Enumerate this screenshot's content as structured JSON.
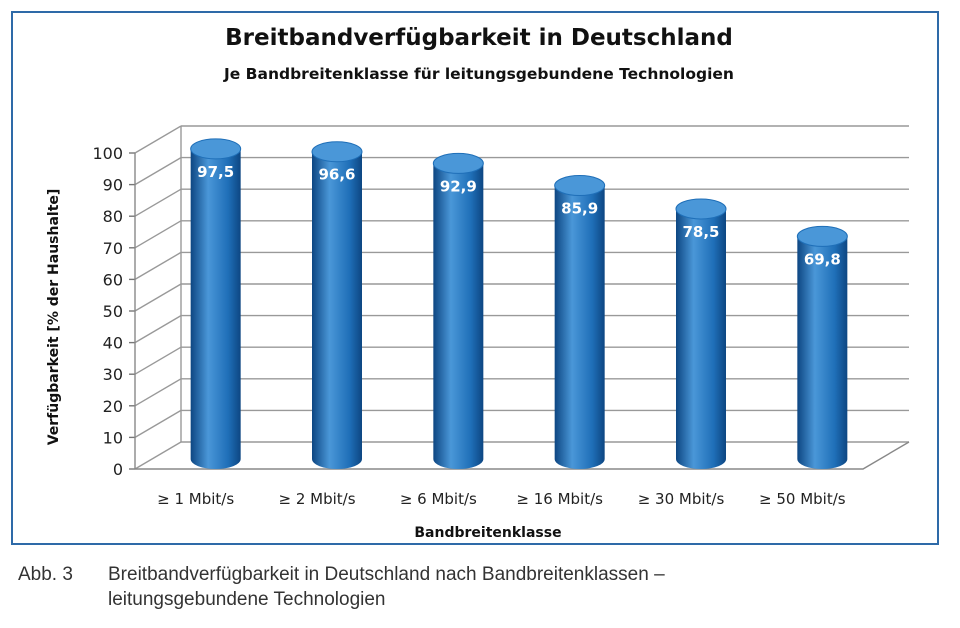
{
  "chart_data": {
    "type": "bar",
    "title": "Breitbandverfügbarkeit in Deutschland",
    "subtitle": "Je Bandbreitenklasse für leitungsgebundene Technologien",
    "xlabel": "Bandbreitenklasse",
    "ylabel": "Verfügbarkeit [% der Haushalte]",
    "categories": [
      "≥ 1 Mbit/s",
      "≥ 2 Mbit/s",
      "≥ 6 Mbit/s",
      "≥ 16 Mbit/s",
      "≥ 30 Mbit/s",
      "≥ 50 Mbit/s"
    ],
    "values": [
      97.5,
      96.6,
      92.9,
      85.9,
      78.5,
      69.8
    ],
    "value_labels": [
      "97,5",
      "96,6",
      "92,9",
      "85,9",
      "78,5",
      "69,8"
    ],
    "ylim": [
      0,
      100
    ],
    "yticks": [
      0,
      10,
      20,
      30,
      40,
      50,
      60,
      70,
      80,
      90,
      100
    ],
    "grid": true,
    "bar_color": "#1f6fb8",
    "bar_dark": "#0d4682",
    "bar_light": "#4a97d8"
  },
  "caption": {
    "number": "Abb. 3",
    "text": "Breitbandverfügbarkeit in Deutschland nach Bandbreitenklassen – leitungsgebundene Technologien"
  }
}
